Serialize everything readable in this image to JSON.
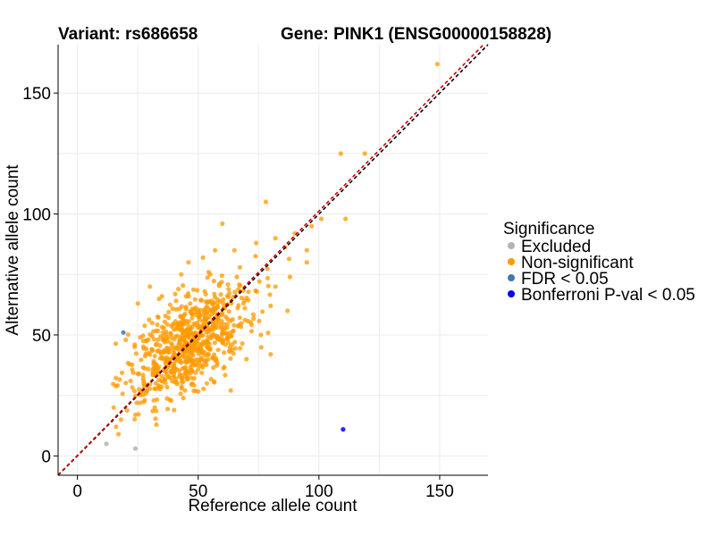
{
  "header": {
    "variant_title": "Variant: rs686658",
    "gene_title": "Gene: PINK1 (ENSG00000158828)"
  },
  "chart_data": {
    "type": "scatter",
    "xlabel": "Reference allele count",
    "ylabel": "Alternative allele count",
    "xlim": [
      -8,
      170
    ],
    "ylim": [
      -8,
      170
    ],
    "xticks": [
      0,
      50,
      100,
      150
    ],
    "yticks": [
      0,
      50,
      100,
      150
    ],
    "grid": true,
    "legend": {
      "title": "Significance",
      "position": "right",
      "entries": [
        {
          "label": "Excluded",
          "color": "#b3b3b3"
        },
        {
          "label": "Non-significant",
          "color": "#ff9900"
        },
        {
          "label": "FDR < 0.05",
          "color": "#4477aa"
        },
        {
          "label": "Bonferroni P-val < 0.05",
          "color": "#0000ff"
        }
      ]
    },
    "reference_lines": [
      {
        "name": "identity",
        "slope": 1,
        "intercept": 0,
        "color": "#000000",
        "style": "dashed"
      },
      {
        "name": "fit",
        "slope": 1.01,
        "intercept": 0.2,
        "color": "#cc0000",
        "style": "dashed"
      }
    ],
    "series": [
      {
        "name": "Excluded",
        "color": "#b3b3b3",
        "points": [
          [
            12,
            5
          ],
          [
            24,
            3
          ]
        ]
      },
      {
        "name": "FDR < 0.05",
        "color": "#4477aa",
        "points": [
          [
            19,
            51
          ]
        ]
      },
      {
        "name": "Bonferroni P-val < 0.05",
        "color": "#0000ff",
        "points": [
          [
            110,
            11
          ]
        ]
      },
      {
        "name": "Non-significant",
        "color": "#ff9900",
        "points": [
          [
            149,
            162
          ],
          [
            109,
            125
          ],
          [
            119,
            125
          ],
          [
            111,
            98
          ],
          [
            101,
            98
          ],
          [
            97,
            95
          ],
          [
            90,
            92
          ],
          [
            78,
            105
          ],
          [
            95,
            85
          ],
          [
            95,
            80
          ],
          [
            88,
            74
          ],
          [
            87,
            60
          ],
          [
            80,
            42
          ],
          [
            70,
            40
          ],
          [
            60,
            96
          ],
          [
            82,
            70
          ],
          [
            80,
            62
          ],
          [
            76,
            50
          ],
          [
            82,
            90
          ],
          [
            74,
            88
          ],
          [
            65,
            85
          ],
          [
            57,
            85
          ],
          [
            66,
            74
          ],
          [
            30,
            70
          ],
          [
            25,
            63
          ],
          [
            20,
            48
          ],
          [
            26,
            22
          ],
          [
            18,
            15
          ],
          [
            15,
            20
          ],
          [
            16,
            12
          ],
          [
            17,
            9
          ],
          [
            22,
            31
          ],
          [
            24,
            17
          ],
          [
            32,
            20
          ],
          [
            35,
            66
          ],
          [
            55,
            75
          ],
          [
            43,
            75
          ],
          [
            46,
            80
          ],
          [
            52,
            82
          ]
        ],
        "cluster": {
          "n": 720,
          "center": [
            47,
            47
          ],
          "sd_major": 15.5,
          "sd_minor": 8.0,
          "angle_deg": 45
        }
      }
    ]
  }
}
